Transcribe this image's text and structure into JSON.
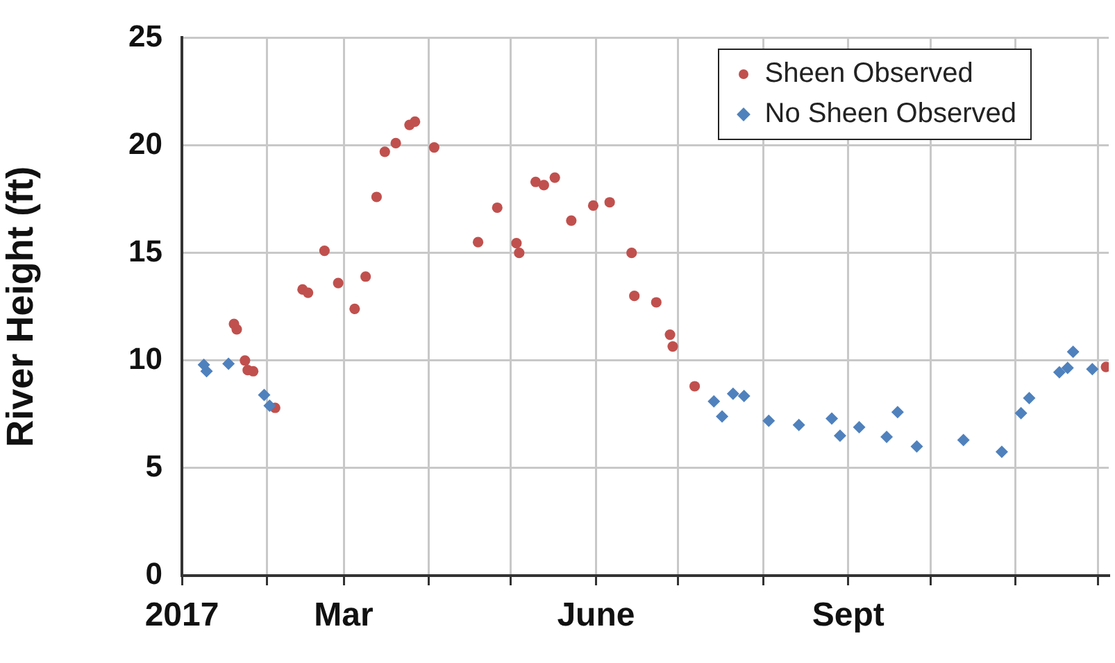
{
  "chart_data": {
    "type": "scatter",
    "ylabel": "River Height (ft)",
    "xlim": [
      "2017-01-01",
      "2017-12-05"
    ],
    "xticks": [
      {
        "value": "2017-01-01",
        "label": "2017"
      },
      {
        "value": "2017-02-01",
        "label": null
      },
      {
        "value": "2017-03-01",
        "label": "Mar"
      },
      {
        "value": "2017-04-01",
        "label": null
      },
      {
        "value": "2017-05-01",
        "label": null
      },
      {
        "value": "2017-06-01",
        "label": "June"
      },
      {
        "value": "2017-07-01",
        "label": null
      },
      {
        "value": "2017-08-01",
        "label": null
      },
      {
        "value": "2017-09-01",
        "label": "Sept"
      },
      {
        "value": "2017-10-01",
        "label": null
      },
      {
        "value": "2017-11-01",
        "label": null
      },
      {
        "value": "2017-12-01",
        "label": null
      }
    ],
    "ylim": [
      0,
      25
    ],
    "yticks": [
      0,
      5,
      10,
      15,
      20,
      25
    ],
    "grid": true,
    "legend": "top right",
    "series": [
      {
        "name": "Sheen Observed",
        "color": "#c0504d",
        "marker": "circle",
        "x": [
          "2017-01-20",
          "2017-01-21",
          "2017-01-24",
          "2017-01-25",
          "2017-01-27",
          "2017-02-04",
          "2017-02-14",
          "2017-02-16",
          "2017-02-22",
          "2017-02-27",
          "2017-03-05",
          "2017-03-09",
          "2017-03-13",
          "2017-03-16",
          "2017-03-20",
          "2017-03-25",
          "2017-03-27",
          "2017-04-03",
          "2017-04-19",
          "2017-04-26",
          "2017-05-03",
          "2017-05-04",
          "2017-05-10",
          "2017-05-13",
          "2017-05-17",
          "2017-05-23",
          "2017-05-31",
          "2017-06-06",
          "2017-06-14",
          "2017-06-15",
          "2017-06-23",
          "2017-06-28",
          "2017-06-29",
          "2017-07-07",
          "2017-12-04"
        ],
        "values": [
          11.7,
          11.45,
          10.0,
          9.55,
          9.5,
          7.8,
          13.3,
          13.15,
          15.1,
          13.6,
          12.4,
          13.9,
          17.6,
          19.7,
          20.1,
          20.95,
          21.1,
          19.9,
          15.5,
          17.1,
          15.45,
          15.0,
          18.3,
          18.15,
          18.5,
          16.5,
          17.2,
          17.35,
          15.0,
          13.0,
          12.7,
          11.2,
          10.65,
          8.8,
          9.7
        ]
      },
      {
        "name": "No Sheen Observed",
        "color": "#4f81bd",
        "marker": "diamond",
        "x": [
          "2017-01-09",
          "2017-01-10",
          "2017-01-18",
          "2017-01-31",
          "2017-02-02",
          "2017-07-14",
          "2017-07-17",
          "2017-07-21",
          "2017-07-25",
          "2017-08-03",
          "2017-08-14",
          "2017-08-26",
          "2017-08-29",
          "2017-09-05",
          "2017-09-15",
          "2017-09-19",
          "2017-09-26",
          "2017-10-13",
          "2017-10-27",
          "2017-11-03",
          "2017-11-06",
          "2017-11-17",
          "2017-11-20",
          "2017-11-22",
          "2017-11-29"
        ],
        "values": [
          9.8,
          9.5,
          9.85,
          8.4,
          7.9,
          8.1,
          7.4,
          8.45,
          8.35,
          7.2,
          7.0,
          7.3,
          6.5,
          6.9,
          6.45,
          7.6,
          6.0,
          6.3,
          5.75,
          7.55,
          8.25,
          9.45,
          9.65,
          10.4,
          9.6
        ]
      }
    ]
  }
}
